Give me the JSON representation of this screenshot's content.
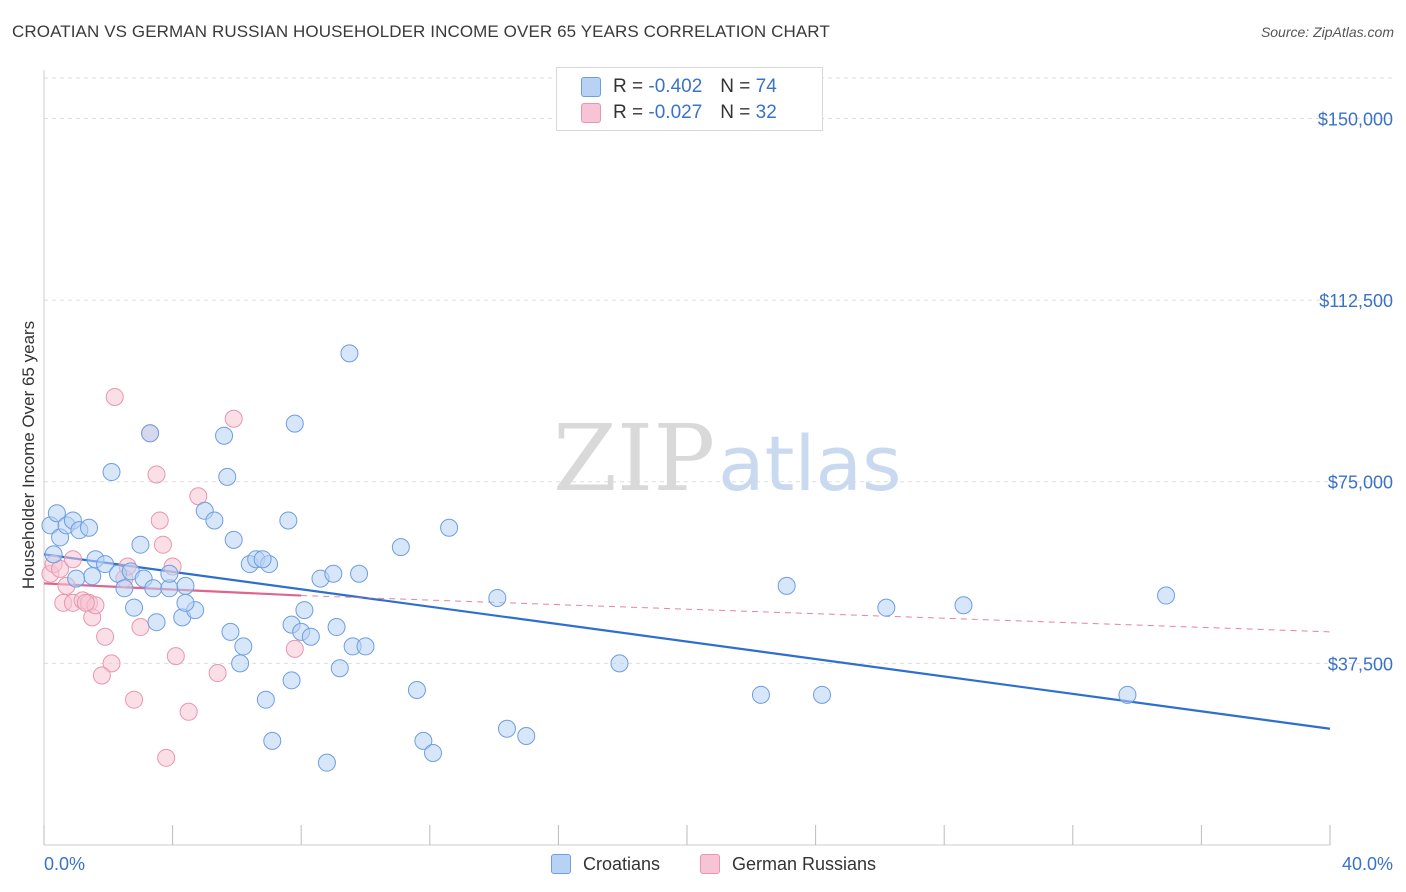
{
  "header": {
    "title": "CROATIAN VS GERMAN RUSSIAN HOUSEHOLDER INCOME OVER 65 YEARS CORRELATION CHART",
    "source": "Source: ZipAtlas.com"
  },
  "legend": {
    "croatians": {
      "r_label": "R = ",
      "r_value": "-0.402",
      "n_label": "N = ",
      "n_value": "74"
    },
    "german_russians": {
      "r_label": "R = ",
      "r_value": "-0.027",
      "n_label": "N = ",
      "n_value": "32"
    }
  },
  "watermark": {
    "zip": "ZIP",
    "atlas": "atlas"
  },
  "colors": {
    "croatians_fill": "#b8d2f4",
    "croatians_stroke": "#6d9ee0",
    "croatians_line": "#2d6fd0",
    "german_russians_fill": "#f6c4d4",
    "german_russians_stroke": "#e896b0",
    "german_russians_line": "#e0648c",
    "axis_label": "#3a72c8",
    "grid": "#dddddd"
  },
  "chart_data": {
    "type": "scatter",
    "title": "CROATIAN VS GERMAN RUSSIAN HOUSEHOLDER INCOME OVER 65 YEARS CORRELATION CHART",
    "xlabel": "",
    "ylabel": "Householder Income Over 65 years",
    "xlim": [
      0,
      40
    ],
    "ylim": [
      0,
      160000
    ],
    "x_tick_labels": [
      "0.0%",
      "40.0%"
    ],
    "y_ticks": [
      37500,
      75000,
      112500,
      150000
    ],
    "y_tick_labels": [
      "$37,500",
      "$75,000",
      "$112,500",
      "$150,000"
    ],
    "legend_position": "top-center",
    "series": [
      {
        "name": "Croatians",
        "points": [
          [
            0.2,
            66000
          ],
          [
            0.4,
            68500
          ],
          [
            0.5,
            63500
          ],
          [
            0.7,
            66000
          ],
          [
            0.9,
            67000
          ],
          [
            1.1,
            65000
          ],
          [
            1.4,
            65500
          ],
          [
            0.3,
            60000
          ],
          [
            1.6,
            59000
          ],
          [
            1.9,
            58000
          ],
          [
            2.3,
            56000
          ],
          [
            2.7,
            56500
          ],
          [
            3.1,
            55000
          ],
          [
            1.5,
            55500
          ],
          [
            2.5,
            53000
          ],
          [
            3.4,
            53000
          ],
          [
            3.9,
            53000
          ],
          [
            4.4,
            53500
          ],
          [
            2.8,
            49000
          ],
          [
            3.5,
            46000
          ],
          [
            4.3,
            47000
          ],
          [
            4.7,
            48500
          ],
          [
            4.4,
            50000
          ],
          [
            5.0,
            69000
          ],
          [
            5.3,
            67000
          ],
          [
            5.9,
            63000
          ],
          [
            6.4,
            58000
          ],
          [
            6.6,
            59000
          ],
          [
            7.0,
            58000
          ],
          [
            7.6,
            67000
          ],
          [
            7.7,
            45500
          ],
          [
            8.1,
            48500
          ],
          [
            8.0,
            44000
          ],
          [
            8.3,
            43000
          ],
          [
            8.6,
            55000
          ],
          [
            9.0,
            56000
          ],
          [
            9.1,
            45000
          ],
          [
            9.2,
            36500
          ],
          [
            9.6,
            41000
          ],
          [
            9.8,
            56000
          ],
          [
            10.0,
            41000
          ],
          [
            3.0,
            62000
          ],
          [
            2.1,
            77000
          ],
          [
            3.3,
            85000
          ],
          [
            5.6,
            84500
          ],
          [
            5.7,
            76000
          ],
          [
            7.8,
            87000
          ],
          [
            9.5,
            101500
          ],
          [
            11.1,
            61500
          ],
          [
            12.6,
            65500
          ],
          [
            14.1,
            51000
          ],
          [
            5.8,
            44000
          ],
          [
            6.1,
            37500
          ],
          [
            6.2,
            41000
          ],
          [
            6.9,
            30000
          ],
          [
            7.1,
            21500
          ],
          [
            7.7,
            34000
          ],
          [
            8.8,
            17000
          ],
          [
            11.6,
            32000
          ],
          [
            11.8,
            21500
          ],
          [
            12.1,
            19000
          ],
          [
            14.4,
            24000
          ],
          [
            15.0,
            22500
          ],
          [
            17.9,
            37500
          ],
          [
            22.3,
            31000
          ],
          [
            23.1,
            53500
          ],
          [
            24.2,
            31000
          ],
          [
            26.2,
            49000
          ],
          [
            28.6,
            49500
          ],
          [
            33.7,
            31000
          ],
          [
            34.9,
            51500
          ],
          [
            1.0,
            55000
          ],
          [
            3.9,
            56000
          ],
          [
            6.8,
            59000
          ]
        ],
        "trend_line": {
          "x": [
            0,
            40
          ],
          "y": [
            60000,
            24000
          ]
        }
      },
      {
        "name": "German Russians",
        "points": [
          [
            0.2,
            56000
          ],
          [
            0.3,
            58000
          ],
          [
            0.5,
            57000
          ],
          [
            0.7,
            53500
          ],
          [
            0.9,
            59000
          ],
          [
            0.6,
            50000
          ],
          [
            0.9,
            50000
          ],
          [
            1.2,
            50500
          ],
          [
            1.4,
            50000
          ],
          [
            1.5,
            47000
          ],
          [
            1.6,
            49500
          ],
          [
            1.3,
            50000
          ],
          [
            1.9,
            43000
          ],
          [
            2.1,
            37500
          ],
          [
            1.8,
            35000
          ],
          [
            2.5,
            55000
          ],
          [
            2.6,
            57500
          ],
          [
            3.0,
            45000
          ],
          [
            2.8,
            30000
          ],
          [
            3.3,
            85000
          ],
          [
            3.5,
            76500
          ],
          [
            3.6,
            67000
          ],
          [
            3.7,
            62000
          ],
          [
            4.0,
            57500
          ],
          [
            4.1,
            39000
          ],
          [
            4.5,
            27500
          ],
          [
            4.8,
            72000
          ],
          [
            5.4,
            35500
          ],
          [
            5.9,
            88000
          ],
          [
            7.8,
            40500
          ],
          [
            3.8,
            18000
          ],
          [
            2.2,
            92500
          ]
        ],
        "trend_line": {
          "x": [
            0,
            8
          ],
          "y": [
            54000,
            51500
          ]
        },
        "trend_line_extended": {
          "x": [
            8,
            40
          ],
          "y": [
            51500,
            44000
          ]
        }
      }
    ]
  }
}
